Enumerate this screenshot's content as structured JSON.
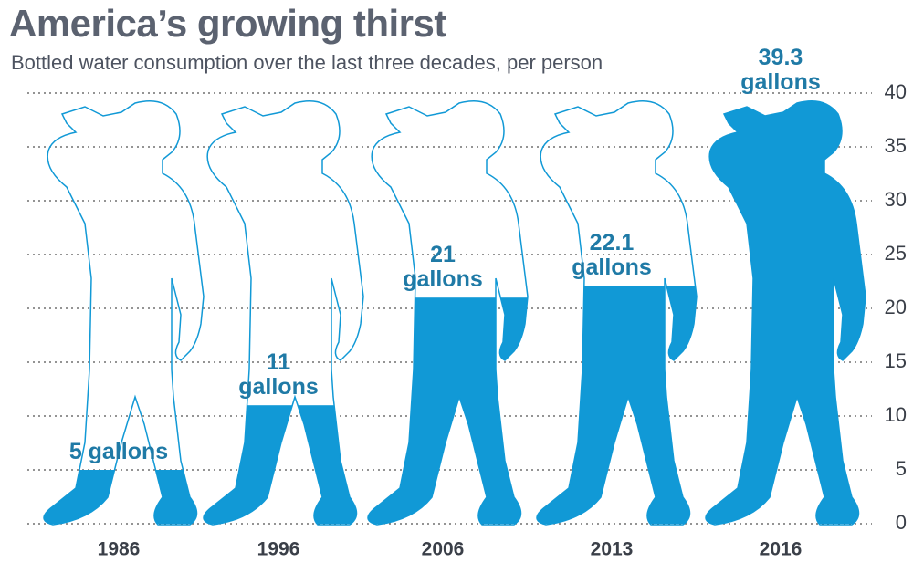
{
  "chart_data": {
    "type": "pictorial",
    "title": "America’s growing thirst",
    "subtitle": "Bottled water consumption over the last three decades, per person",
    "categories": [
      "1986",
      "1996",
      "2006",
      "2013",
      "2016"
    ],
    "values": [
      5,
      11,
      21,
      22.1,
      39.3
    ],
    "value_labels": [
      "5 gallons",
      "11 gallons",
      "21 gallons",
      "22.1 gallons",
      "39.3 gallons"
    ],
    "color": "#1199d6",
    "ylim": [
      0,
      40
    ],
    "yticks": [
      0,
      5,
      10,
      15,
      20,
      25,
      30,
      35,
      40
    ],
    "grid": true
  }
}
